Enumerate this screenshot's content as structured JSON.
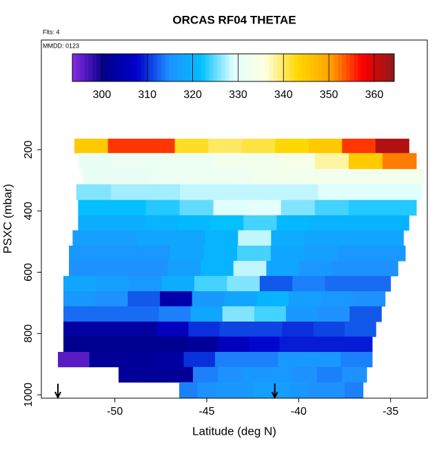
{
  "chart_data": {
    "type": "heatmap",
    "title": "ORCAS RF04 THETAE",
    "flights_label": "Flts: 4",
    "date_label": "MMDD: 0123",
    "xlabel": "Latitude (deg N)",
    "ylabel": "PSXC (mbar)",
    "xlim": [
      -54,
      -33
    ],
    "xticks": [
      -50,
      -45,
      -40,
      -35
    ],
    "ylim": [
      1011,
      -158
    ],
    "yticks": [
      200,
      400,
      600,
      800,
      1000
    ],
    "colorbar_lim": [
      293.5,
      364.4
    ],
    "colorbar_ticks": [
      300,
      310,
      320,
      330,
      340,
      350,
      360
    ],
    "colorscale": [
      "#8a2be2",
      "#00008b",
      "#0000cd",
      "#1e90ff",
      "#00bfff",
      "#e0ffff",
      "#ffffe0",
      "#ffd700",
      "#ffa500",
      "#ff0000",
      "#8b1a1a"
    ],
    "rows": [
      {
        "pressure": [
          164,
          211
        ],
        "latitude": [
          -52.2,
          -34
        ],
        "values": [
          345,
          355,
          355,
          342,
          340,
          341,
          343,
          345,
          355,
          362
        ]
      },
      {
        "pressure": [
          211,
          263
        ],
        "latitude": [
          -52,
          -33.6
        ],
        "values": [
          331,
          332,
          332,
          332,
          333,
          333,
          334,
          338,
          345,
          352
        ]
      },
      {
        "pressure": [
          263,
          313
        ],
        "latitude": [
          -51.8,
          -33.2
        ],
        "values": [
          331,
          331,
          332,
          332,
          332,
          333,
          333,
          333,
          333,
          333
        ]
      },
      {
        "pressure": [
          313,
          364
        ],
        "latitude": [
          -52.1,
          -33.3
        ],
        "values": [
          326,
          327,
          327,
          328,
          328,
          328,
          328,
          329,
          329,
          329
        ]
      },
      {
        "pressure": [
          364,
          414
        ],
        "latitude": [
          -52,
          -33.6
        ],
        "values": [
          322,
          322,
          323,
          325,
          329,
          330,
          326,
          324,
          323,
          323
        ]
      },
      {
        "pressure": [
          414,
          463
        ],
        "latitude": [
          -52,
          -34
        ],
        "values": [
          319,
          319,
          320,
          321,
          322,
          324,
          321,
          320,
          320,
          320
        ]
      },
      {
        "pressure": [
          463,
          513
        ],
        "latitude": [
          -52.3,
          -34.3
        ],
        "values": [
          317,
          317,
          318,
          318,
          320,
          328,
          319,
          318,
          318,
          318
        ]
      },
      {
        "pressure": [
          513,
          563
        ],
        "latitude": [
          -52.5,
          -34.2
        ],
        "values": [
          316,
          316,
          316,
          318,
          320,
          324,
          318,
          317,
          316,
          316
        ]
      },
      {
        "pressure": [
          563,
          612
        ],
        "latitude": [
          -52.5,
          -34.6
        ],
        "values": [
          315,
          315,
          315,
          317,
          320,
          328,
          318,
          316,
          315,
          315
        ]
      },
      {
        "pressure": [
          612,
          662
        ],
        "latitude": [
          -52.8,
          -35
        ],
        "values": [
          318,
          317,
          316,
          319,
          324,
          326,
          312,
          314,
          313,
          313
        ]
      },
      {
        "pressure": [
          662,
          711
        ],
        "latitude": [
          -52.8,
          -35.3
        ],
        "values": [
          316,
          315,
          312,
          304,
          316,
          318,
          320,
          317,
          316,
          315
        ]
      },
      {
        "pressure": [
          711,
          761
        ],
        "latitude": [
          -52.8,
          -35.5
        ],
        "values": [
          313,
          313,
          313,
          314,
          318,
          326,
          324,
          316,
          315,
          312
        ]
      },
      {
        "pressure": [
          761,
          810
        ],
        "latitude": [
          -52.8,
          -35.8
        ],
        "values": [
          303,
          303,
          303,
          306,
          310,
          311,
          311,
          310,
          311,
          312
        ]
      },
      {
        "pressure": [
          810,
          860
        ],
        "latitude": [
          -52.8,
          -36
        ],
        "values": [
          301,
          301,
          301,
          301,
          302,
          306,
          308,
          309,
          309,
          309
        ]
      },
      {
        "pressure": [
          860,
          909
        ],
        "latitude": [
          -53.1,
          -36
        ],
        "values": [
          296,
          302,
          302,
          303,
          310,
          314,
          314,
          316,
          316,
          314
        ]
      },
      {
        "pressure": [
          909,
          959
        ],
        "latitude": [
          -49.8,
          -36.3
        ],
        "values": [
          302,
          302,
          302,
          314,
          315,
          316,
          316,
          315,
          314,
          315
        ]
      },
      {
        "pressure": [
          959,
          1009
        ],
        "latitude": [
          -46.5,
          -36.5
        ],
        "values": [
          314,
          315,
          316,
          316,
          317,
          317,
          316,
          315,
          315,
          314
        ]
      }
    ],
    "arrows_latitude": [
      -53.1,
      -41.3
    ]
  }
}
